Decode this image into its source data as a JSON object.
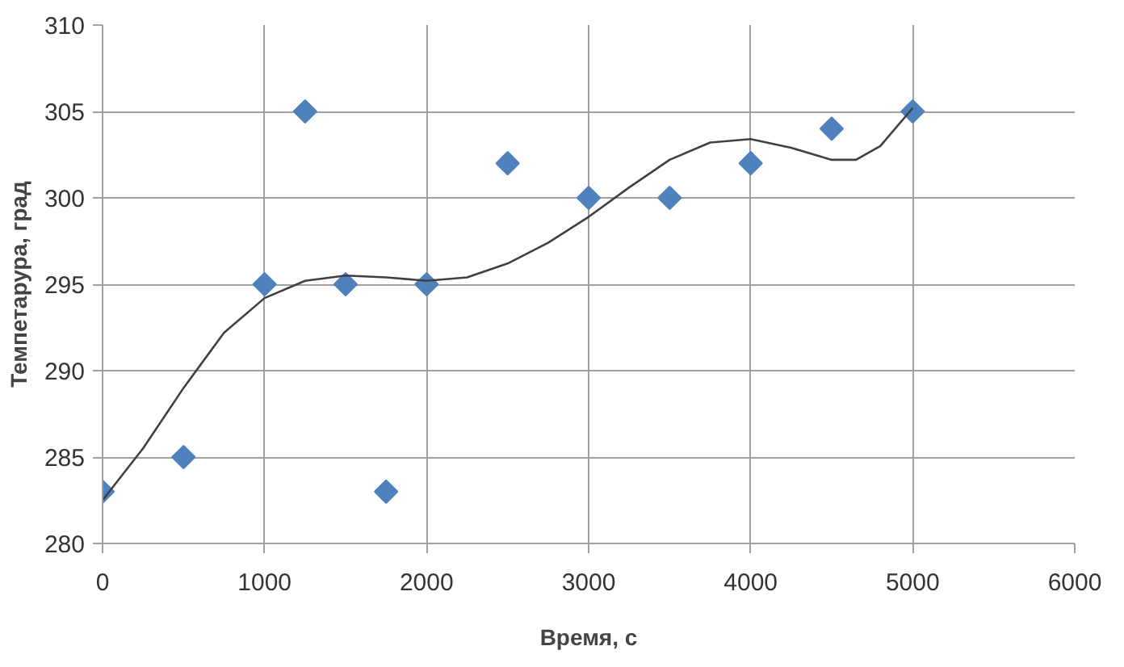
{
  "chart_data": {
    "type": "scatter",
    "xlabel": "Время, с",
    "ylabel": "Темпетарура, град",
    "xlim": [
      0,
      6000
    ],
    "ylim": [
      280,
      310
    ],
    "xticks": [
      0,
      1000,
      2000,
      3000,
      4000,
      5000,
      6000
    ],
    "yticks": [
      280,
      285,
      290,
      295,
      300,
      305,
      310
    ],
    "grid": true,
    "series": [
      {
        "marker": "diamond",
        "color": "#4f81bd",
        "x": [
          0,
          500,
          1000,
          1250,
          1500,
          1750,
          2000,
          2500,
          3000,
          3500,
          4000,
          4500,
          5000
        ],
        "values": [
          283,
          285,
          295,
          305,
          295,
          283,
          295,
          302,
          300,
          300,
          302,
          304,
          305
        ]
      },
      {
        "type": "line",
        "line_style": "solid",
        "color": "#404040",
        "x": [
          0,
          250,
          500,
          750,
          1000,
          1250,
          1500,
          1750,
          2000,
          2250,
          2500,
          2750,
          3000,
          3250,
          3500,
          3750,
          4000,
          4250,
          4500,
          4650,
          4800,
          5000
        ],
        "values": [
          282.5,
          285.5,
          289,
          292.2,
          294.2,
          295.2,
          295.5,
          295.4,
          295.2,
          295.4,
          296.2,
          297.4,
          298.9,
          300.6,
          302.2,
          303.2,
          303.4,
          302.9,
          302.2,
          302.2,
          303,
          305.2
        ]
      }
    ]
  }
}
